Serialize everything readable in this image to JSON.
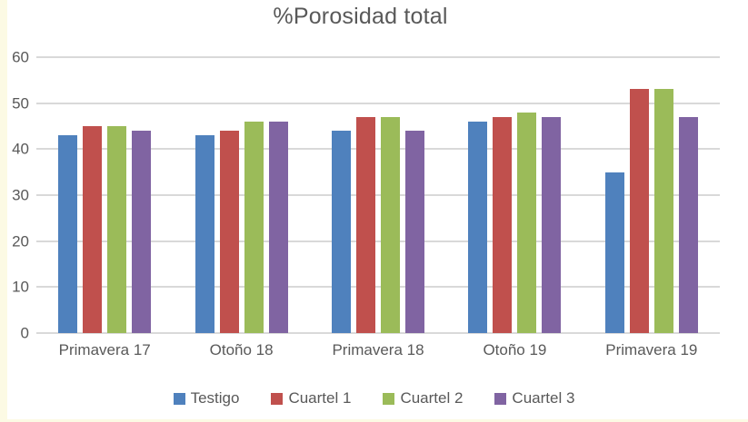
{
  "chart_data": {
    "type": "bar",
    "title": "%Porosidad total",
    "categories": [
      "Primavera 17",
      "Otoño 18",
      "Primavera 18",
      "Otoño 19",
      "Primavera 19"
    ],
    "series": [
      {
        "name": "Testigo",
        "color": "#4F81BD",
        "values": [
          43,
          43,
          44,
          46,
          35
        ]
      },
      {
        "name": "Cuartel 1",
        "color": "#C0504D",
        "values": [
          45,
          44,
          47,
          47,
          53
        ]
      },
      {
        "name": "Cuartel 2",
        "color": "#9BBB59",
        "values": [
          45,
          46,
          47,
          48,
          53
        ]
      },
      {
        "name": "Cuartel 3",
        "color": "#8064A2",
        "values": [
          44,
          46,
          44,
          47,
          47
        ]
      }
    ],
    "ylim": [
      0,
      60
    ],
    "yticks": [
      0,
      10,
      20,
      30,
      40,
      50,
      60
    ],
    "grid": true,
    "legend_position": "bottom",
    "colors": {
      "gridline": "#d9d9d9",
      "text": "#595959",
      "background": "#ffffff",
      "worksheet_edge": "#fcfae4"
    }
  }
}
